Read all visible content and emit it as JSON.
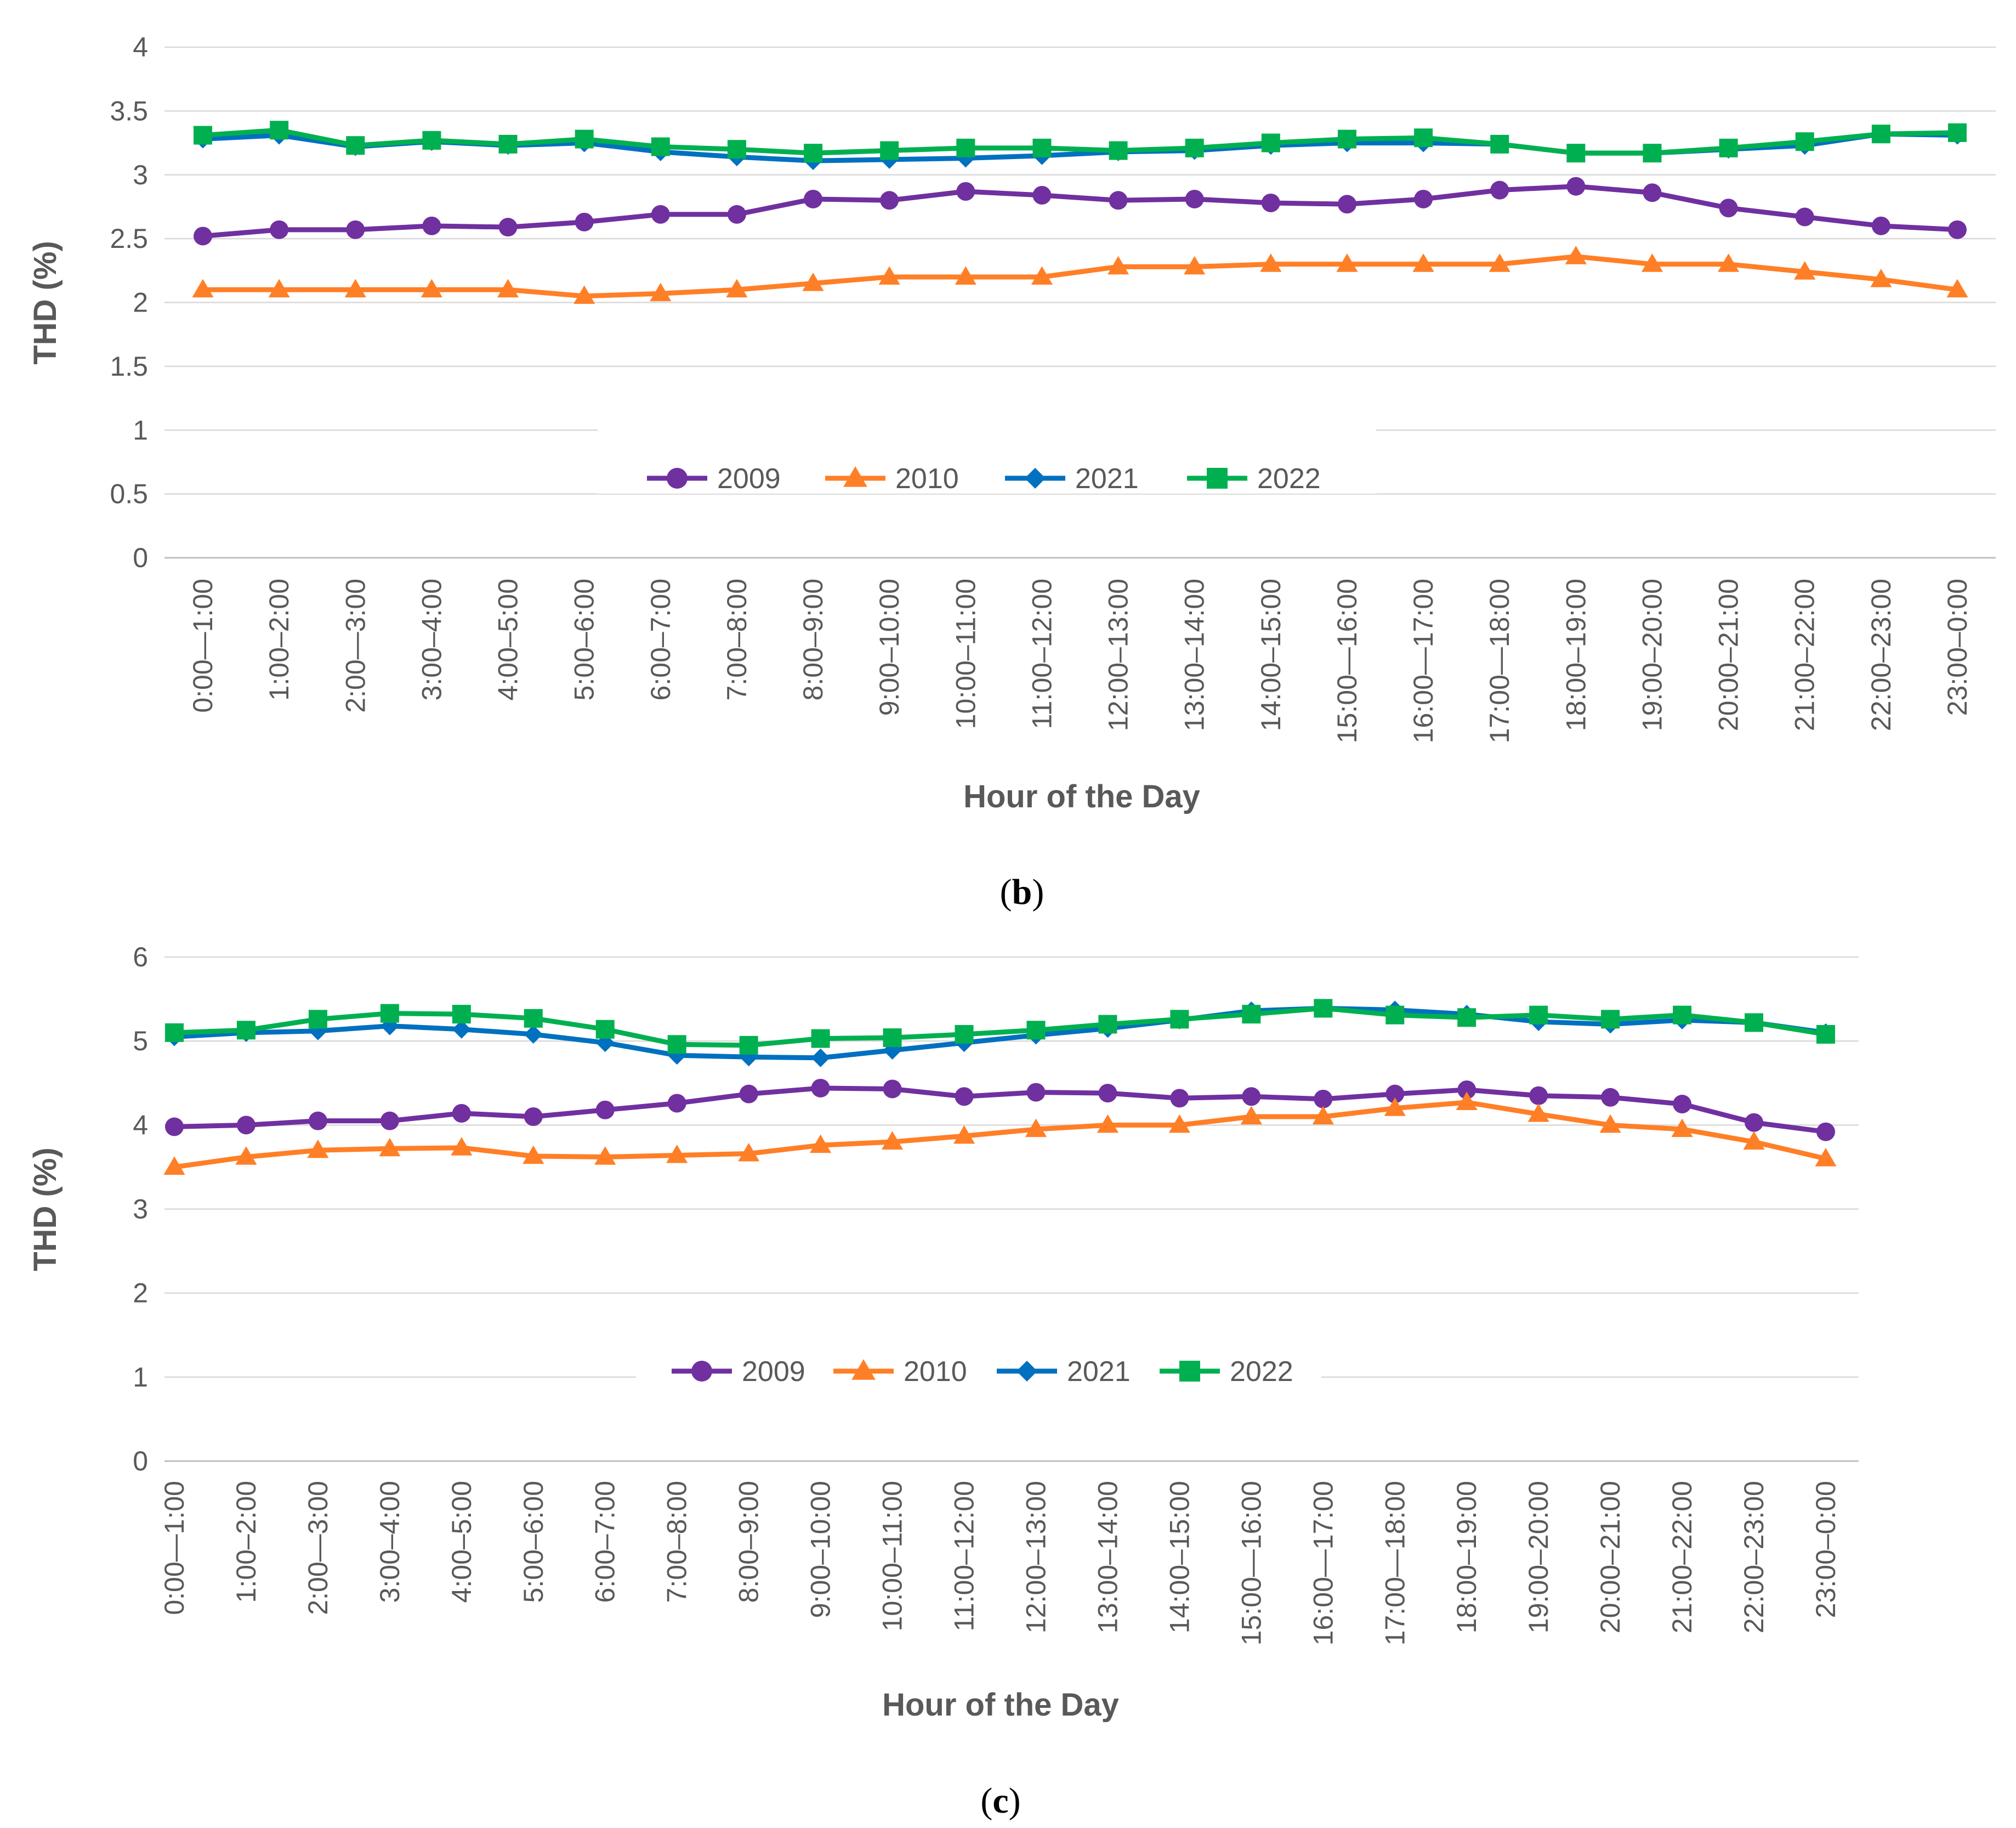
{
  "chart_data": [
    {
      "type": "line",
      "panel": "b",
      "caption": {
        "open": "(",
        "letter": "b",
        "close": ")"
      },
      "title": "",
      "xlabel": "Hour of the Day",
      "ylabel": "THD (%)",
      "ylim": [
        0,
        4
      ],
      "yticks": [
        "0",
        "0.5",
        "1",
        "1.5",
        "2",
        "2.5",
        "3",
        "3.5",
        "4"
      ],
      "grid": true,
      "legend": "center",
      "categories": [
        "0:00—1:00",
        "1:00–2:00",
        "2:00—3:00",
        "3:00–4:00",
        "4:00–5:00",
        "5:00–6:00",
        "6:00–7:00",
        "7:00–8:00",
        "8:00–9:00",
        "9:00–10:00",
        "10:00–11:00",
        "11:00–12:00",
        "12:00–13:00",
        "13:00–14:00",
        "14:00–15:00",
        "15:00—16:00",
        "16:00—17:00",
        "17:00—18:00",
        "18:00–19:00",
        "19:00–20:00",
        "20:00–21:00",
        "21:00–22:00",
        "22:00–23:00",
        "23:00–0:00"
      ],
      "series": [
        {
          "name": "2009",
          "color": "#7030A0",
          "marker": "circle",
          "values": [
            2.52,
            2.57,
            2.57,
            2.6,
            2.59,
            2.63,
            2.69,
            2.69,
            2.81,
            2.8,
            2.87,
            2.84,
            2.8,
            2.81,
            2.78,
            2.77,
            2.81,
            2.88,
            2.91,
            2.86,
            2.74,
            2.67,
            2.6,
            2.57
          ]
        },
        {
          "name": "2010",
          "color": "#FF7F27",
          "marker": "triangle",
          "values": [
            2.1,
            2.1,
            2.1,
            2.1,
            2.1,
            2.05,
            2.07,
            2.1,
            2.15,
            2.2,
            2.2,
            2.2,
            2.28,
            2.28,
            2.3,
            2.3,
            2.3,
            2.3,
            2.36,
            2.3,
            2.3,
            2.24,
            2.18,
            2.1
          ]
        },
        {
          "name": "2021",
          "color": "#0070C0",
          "marker": "diamond",
          "values": [
            3.28,
            3.31,
            3.22,
            3.26,
            3.23,
            3.25,
            3.18,
            3.14,
            3.11,
            3.12,
            3.13,
            3.15,
            3.18,
            3.19,
            3.23,
            3.25,
            3.25,
            3.24,
            3.17,
            3.17,
            3.2,
            3.23,
            3.32,
            3.31
          ]
        },
        {
          "name": "2022",
          "color": "#00B050",
          "marker": "square",
          "values": [
            3.31,
            3.35,
            3.23,
            3.27,
            3.24,
            3.28,
            3.22,
            3.2,
            3.17,
            3.19,
            3.21,
            3.21,
            3.19,
            3.21,
            3.25,
            3.28,
            3.29,
            3.24,
            3.17,
            3.17,
            3.21,
            3.26,
            3.32,
            3.33
          ]
        }
      ]
    },
    {
      "type": "line",
      "panel": "c",
      "caption": {
        "open": "(",
        "letter": "c",
        "close": ")"
      },
      "title": "",
      "xlabel": "Hour of the Day",
      "ylabel": "THD (%)",
      "ylim": [
        0,
        6
      ],
      "yticks": [
        "0",
        "1",
        "2",
        "3",
        "4",
        "5",
        "6"
      ],
      "grid": true,
      "legend": "center",
      "categories": [
        "0:00—1:00",
        "1:00–2:00",
        "2:00—3:00",
        "3:00–4:00",
        "4:00–5:00",
        "5:00–6:00",
        "6:00–7:00",
        "7:00–8:00",
        "8:00–9:00",
        "9:00–10:00",
        "10:00–11:00",
        "11:00–12:00",
        "12:00–13:00",
        "13:00–14:00",
        "14:00–15:00",
        "15:00—16:00",
        "16:00—17:00",
        "17:00—18:00",
        "18:00–19:00",
        "19:00–20:00",
        "20:00–21:00",
        "21:00–22:00",
        "22:00–23:00",
        "23:00–0:00"
      ],
      "series": [
        {
          "name": "2009",
          "color": "#7030A0",
          "marker": "circle",
          "values": [
            3.98,
            4.0,
            4.05,
            4.05,
            4.14,
            4.1,
            4.18,
            4.26,
            4.37,
            4.44,
            4.43,
            4.34,
            4.39,
            4.38,
            4.32,
            4.34,
            4.31,
            4.37,
            4.42,
            4.35,
            4.33,
            4.25,
            4.03,
            3.92
          ]
        },
        {
          "name": "2010",
          "color": "#FF7F27",
          "marker": "triangle",
          "values": [
            3.5,
            3.62,
            3.7,
            3.72,
            3.73,
            3.63,
            3.62,
            3.64,
            3.66,
            3.76,
            3.8,
            3.87,
            3.95,
            4.0,
            4.0,
            4.1,
            4.1,
            4.2,
            4.27,
            4.13,
            4.0,
            3.95,
            3.8,
            3.6
          ]
        },
        {
          "name": "2021",
          "color": "#0070C0",
          "marker": "diamond",
          "values": [
            5.05,
            5.1,
            5.12,
            5.18,
            5.14,
            5.08,
            4.98,
            4.83,
            4.81,
            4.8,
            4.89,
            4.98,
            5.07,
            5.15,
            5.25,
            5.36,
            5.39,
            5.37,
            5.32,
            5.23,
            5.2,
            5.25,
            5.22,
            5.1
          ]
        },
        {
          "name": "2022",
          "color": "#00B050",
          "marker": "square",
          "values": [
            5.1,
            5.13,
            5.26,
            5.33,
            5.32,
            5.27,
            5.14,
            4.96,
            4.95,
            5.03,
            5.04,
            5.08,
            5.13,
            5.2,
            5.26,
            5.32,
            5.39,
            5.31,
            5.28,
            5.31,
            5.26,
            5.31,
            5.22,
            5.08
          ]
        }
      ]
    }
  ]
}
